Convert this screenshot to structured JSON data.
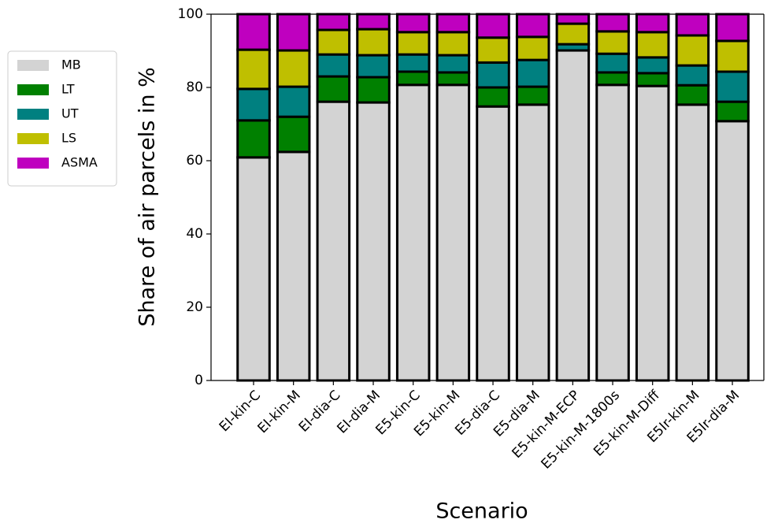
{
  "chart_data": {
    "type": "stacked_bar",
    "x_label": "Scenario",
    "y_label": "Share of air parcels in %",
    "categories": [
      "EI-kin-C",
      "EI-kin-M",
      "EI-dia-C",
      "EI-dia-M",
      "E5-kin-C",
      "E5-kin-M",
      "E5-dia-C",
      "E5-dia-M",
      "E5-kin-M-ECP",
      "E5-kin-M-1800s",
      "E5-kin-M-Diff",
      "E5Ir-kin-M",
      "E5Ir-dia-M"
    ],
    "series": [
      {
        "name": "MB",
        "color": "#d3d3d3",
        "values": [
          60.9,
          62.4,
          76.1,
          75.9,
          80.7,
          80.7,
          74.8,
          75.3,
          90.1,
          80.7,
          80.4,
          75.3,
          70.8
        ]
      },
      {
        "name": "LT",
        "color": "#008000",
        "values": [
          10.1,
          9.6,
          6.9,
          6.9,
          3.6,
          3.4,
          5.2,
          4.9,
          0,
          3.4,
          3.5,
          5.3,
          5.3
        ]
      },
      {
        "name": "UT",
        "color": "#008080",
        "values": [
          8.6,
          8.2,
          6.0,
          6.0,
          4.7,
          4.7,
          6.8,
          7.3,
          1.7,
          5.1,
          4.3,
          5.4,
          8.2
        ]
      },
      {
        "name": "LS",
        "color": "#bfbf00",
        "values": [
          10.7,
          9.9,
          6.7,
          7.1,
          6.1,
          6.3,
          6.8,
          6.3,
          5.6,
          6.1,
          6.9,
          8.2,
          8.4
        ]
      },
      {
        "name": "ASMA",
        "color": "#bf00bf",
        "values": [
          9.7,
          9.9,
          4.3,
          4.1,
          4.9,
          4.9,
          6.4,
          6.2,
          2.6,
          4.7,
          4.9,
          5.8,
          7.3
        ]
      }
    ],
    "ylim": [
      0,
      100
    ],
    "yticks": [
      0,
      20,
      40,
      60,
      80,
      100
    ],
    "legend": "upper-left-outside"
  }
}
